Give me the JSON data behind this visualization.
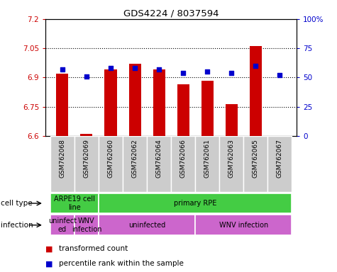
{
  "title": "GDS4224 / 8037594",
  "samples": [
    "GSM762068",
    "GSM762069",
    "GSM762060",
    "GSM762062",
    "GSM762064",
    "GSM762066",
    "GSM762061",
    "GSM762063",
    "GSM762065",
    "GSM762067"
  ],
  "transformed_counts": [
    6.92,
    6.61,
    6.94,
    6.97,
    6.94,
    6.865,
    6.885,
    6.765,
    7.06,
    6.6
  ],
  "percentile_ranks": [
    57,
    51,
    58,
    58,
    57,
    54,
    55,
    54,
    60,
    52
  ],
  "ylim_left": [
    6.6,
    7.2
  ],
  "ylim_right": [
    0,
    100
  ],
  "yticks_left": [
    6.6,
    6.75,
    6.9,
    7.05,
    7.2
  ],
  "yticks_right": [
    0,
    25,
    50,
    75,
    100
  ],
  "ytick_labels_left": [
    "6.6",
    "6.75",
    "6.9",
    "7.05",
    "7.2"
  ],
  "ytick_labels_right": [
    "0",
    "25",
    "50",
    "75",
    "100%"
  ],
  "bar_color": "#cc0000",
  "dot_color": "#0000cc",
  "grid_color": "#000000",
  "legend_items": [
    {
      "color": "#cc0000",
      "label": "transformed count"
    },
    {
      "color": "#0000cc",
      "label": "percentile rank within the sample"
    }
  ],
  "cell_type_row_label": "cell type",
  "infection_row_label": "infection",
  "bar_width": 0.5,
  "tick_color_left": "#cc0000",
  "tick_color_right": "#0000cc",
  "green_color": "#44cc44",
  "purple_color": "#cc66cc",
  "xtick_bg_color": "#cccccc"
}
